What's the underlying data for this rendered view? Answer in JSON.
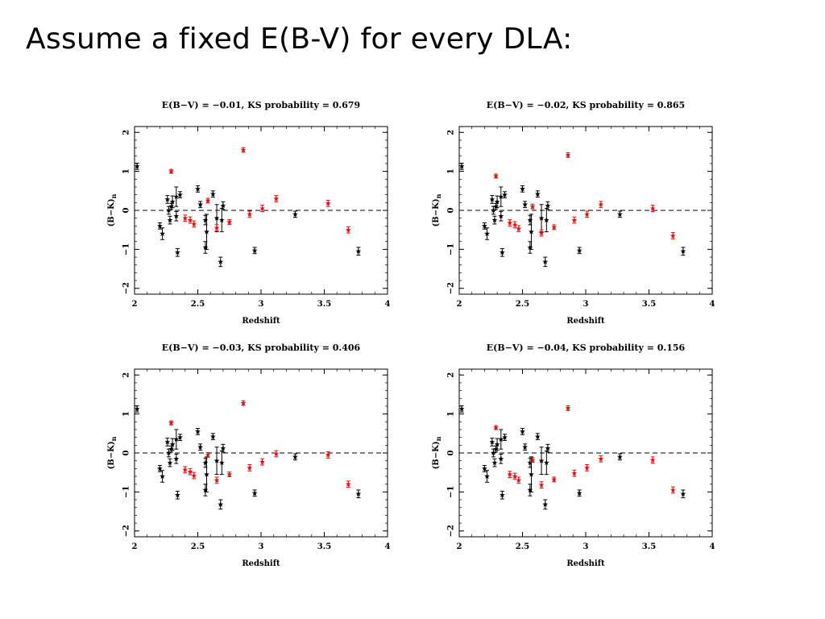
{
  "slide": {
    "title": "Assume a fixed E(B-V) for every DLA:"
  },
  "colors": {
    "black_series": "#000000",
    "red_series": "#dd1111",
    "zero_line": "#000000"
  },
  "chart_data": [
    {
      "type": "scatter",
      "title": "E(B−V) = −0.01,  KS probability = 0.679",
      "xlabel": "Redshift",
      "ylabel": "(B−K)",
      "ylabel_subscript": "n",
      "xlim": [
        2,
        4
      ],
      "ylim": [
        -2.15,
        2.15
      ],
      "xticks": [
        "2",
        "2.5",
        "3",
        "3.5",
        "4"
      ],
      "yticks": [
        "−2",
        "−1",
        "0",
        "1",
        "2"
      ],
      "reference_line": {
        "y": 0,
        "style": "dashed"
      },
      "series": [
        {
          "color": "black",
          "points": [
            {
              "x": 2.02,
              "y": 1.13,
              "err": 0.08
            },
            {
              "x": 2.2,
              "y": -0.4,
              "err": 0.08
            },
            {
              "x": 2.22,
              "y": -0.6,
              "err": 0.15
            },
            {
              "x": 2.26,
              "y": 0.28,
              "err": 0.1
            },
            {
              "x": 2.27,
              "y": 0.0,
              "err": 0.1
            },
            {
              "x": 2.28,
              "y": -0.25,
              "err": 0.1
            },
            {
              "x": 2.29,
              "y": 0.1,
              "err": 0.08
            },
            {
              "x": 2.3,
              "y": 0.22,
              "err": 0.15
            },
            {
              "x": 2.33,
              "y": -0.15,
              "err": 0.12
            },
            {
              "x": 2.33,
              "y": 0.35,
              "err": 0.25
            },
            {
              "x": 2.34,
              "y": -1.08,
              "err": 0.1
            },
            {
              "x": 2.36,
              "y": 0.4,
              "err": 0.08
            },
            {
              "x": 2.5,
              "y": 0.55,
              "err": 0.08
            },
            {
              "x": 2.52,
              "y": 0.15,
              "err": 0.08
            },
            {
              "x": 2.56,
              "y": -0.95,
              "err": 0.15
            },
            {
              "x": 2.56,
              "y": -0.25,
              "err": 0.12
            },
            {
              "x": 2.57,
              "y": -0.55,
              "err": 0.45
            },
            {
              "x": 2.62,
              "y": 0.42,
              "err": 0.08
            },
            {
              "x": 2.65,
              "y": -0.2,
              "err": 0.35
            },
            {
              "x": 2.68,
              "y": -1.32,
              "err": 0.12
            },
            {
              "x": 2.69,
              "y": -0.25,
              "err": 0.3
            },
            {
              "x": 2.7,
              "y": 0.12,
              "err": 0.1
            },
            {
              "x": 2.95,
              "y": -1.03,
              "err": 0.08
            },
            {
              "x": 3.27,
              "y": -0.1,
              "err": 0.08
            },
            {
              "x": 3.77,
              "y": -1.05,
              "err": 0.1
            }
          ]
        },
        {
          "color": "red",
          "points": [
            {
              "x": 2.29,
              "y": 1.0,
              "err": 0.05
            },
            {
              "x": 2.4,
              "y": -0.2,
              "err": 0.08
            },
            {
              "x": 2.44,
              "y": -0.25,
              "err": 0.08
            },
            {
              "x": 2.47,
              "y": -0.35,
              "err": 0.08
            },
            {
              "x": 2.58,
              "y": 0.25,
              "err": 0.06
            },
            {
              "x": 2.65,
              "y": -0.45,
              "err": 0.08
            },
            {
              "x": 2.75,
              "y": -0.3,
              "err": 0.06
            },
            {
              "x": 2.86,
              "y": 1.55,
              "err": 0.06
            },
            {
              "x": 2.91,
              "y": -0.1,
              "err": 0.08
            },
            {
              "x": 3.01,
              "y": 0.05,
              "err": 0.08
            },
            {
              "x": 3.12,
              "y": 0.3,
              "err": 0.08
            },
            {
              "x": 3.53,
              "y": 0.18,
              "err": 0.08
            },
            {
              "x": 3.69,
              "y": -0.5,
              "err": 0.08
            }
          ]
        }
      ]
    },
    {
      "type": "scatter",
      "title": "E(B−V) = −0.02,  KS probability = 0.865",
      "xlabel": "Redshift",
      "ylabel": "(B−K)",
      "ylabel_subscript": "n",
      "xlim": [
        2,
        4
      ],
      "ylim": [
        -2.15,
        2.15
      ],
      "xticks": [
        "2",
        "2.5",
        "3",
        "3.5",
        "4"
      ],
      "yticks": [
        "−2",
        "−1",
        "0",
        "1",
        "2"
      ],
      "reference_line": {
        "y": 0,
        "style": "dashed"
      },
      "series": [
        {
          "color": "black",
          "points": [
            {
              "x": 2.02,
              "y": 1.13,
              "err": 0.08
            },
            {
              "x": 2.2,
              "y": -0.4,
              "err": 0.08
            },
            {
              "x": 2.22,
              "y": -0.6,
              "err": 0.15
            },
            {
              "x": 2.26,
              "y": 0.28,
              "err": 0.1
            },
            {
              "x": 2.27,
              "y": 0.0,
              "err": 0.1
            },
            {
              "x": 2.28,
              "y": -0.25,
              "err": 0.1
            },
            {
              "x": 2.29,
              "y": 0.1,
              "err": 0.08
            },
            {
              "x": 2.3,
              "y": 0.22,
              "err": 0.15
            },
            {
              "x": 2.33,
              "y": -0.15,
              "err": 0.12
            },
            {
              "x": 2.33,
              "y": 0.35,
              "err": 0.25
            },
            {
              "x": 2.34,
              "y": -1.08,
              "err": 0.1
            },
            {
              "x": 2.36,
              "y": 0.4,
              "err": 0.08
            },
            {
              "x": 2.5,
              "y": 0.55,
              "err": 0.08
            },
            {
              "x": 2.52,
              "y": 0.15,
              "err": 0.08
            },
            {
              "x": 2.56,
              "y": -0.95,
              "err": 0.15
            },
            {
              "x": 2.56,
              "y": -0.25,
              "err": 0.12
            },
            {
              "x": 2.57,
              "y": -0.55,
              "err": 0.45
            },
            {
              "x": 2.62,
              "y": 0.42,
              "err": 0.08
            },
            {
              "x": 2.65,
              "y": -0.2,
              "err": 0.35
            },
            {
              "x": 2.68,
              "y": -1.32,
              "err": 0.12
            },
            {
              "x": 2.69,
              "y": -0.25,
              "err": 0.3
            },
            {
              "x": 2.7,
              "y": 0.12,
              "err": 0.1
            },
            {
              "x": 2.95,
              "y": -1.03,
              "err": 0.08
            },
            {
              "x": 3.27,
              "y": -0.1,
              "err": 0.08
            },
            {
              "x": 3.77,
              "y": -1.05,
              "err": 0.1
            }
          ]
        },
        {
          "color": "red",
          "points": [
            {
              "x": 2.29,
              "y": 0.88,
              "err": 0.05
            },
            {
              "x": 2.4,
              "y": -0.32,
              "err": 0.08
            },
            {
              "x": 2.44,
              "y": -0.37,
              "err": 0.08
            },
            {
              "x": 2.47,
              "y": -0.47,
              "err": 0.08
            },
            {
              "x": 2.58,
              "y": 0.1,
              "err": 0.06
            },
            {
              "x": 2.65,
              "y": -0.58,
              "err": 0.08
            },
            {
              "x": 2.75,
              "y": -0.43,
              "err": 0.06
            },
            {
              "x": 2.86,
              "y": 1.42,
              "err": 0.06
            },
            {
              "x": 2.91,
              "y": -0.25,
              "err": 0.08
            },
            {
              "x": 3.01,
              "y": -0.1,
              "err": 0.08
            },
            {
              "x": 3.12,
              "y": 0.15,
              "err": 0.08
            },
            {
              "x": 3.53,
              "y": 0.05,
              "err": 0.08
            },
            {
              "x": 3.69,
              "y": -0.65,
              "err": 0.08
            }
          ]
        }
      ]
    },
    {
      "type": "scatter",
      "title": "E(B−V) = −0.03,  KS probability = 0.406",
      "xlabel": "Redshift",
      "ylabel": "(B−K)",
      "ylabel_subscript": "n",
      "xlim": [
        2,
        4
      ],
      "ylim": [
        -2.15,
        2.15
      ],
      "xticks": [
        "2",
        "2.5",
        "3",
        "3.5",
        "4"
      ],
      "yticks": [
        "−2",
        "−1",
        "0",
        "1",
        "2"
      ],
      "reference_line": {
        "y": 0,
        "style": "dashed"
      },
      "series": [
        {
          "color": "black",
          "points": [
            {
              "x": 2.02,
              "y": 1.13,
              "err": 0.08
            },
            {
              "x": 2.2,
              "y": -0.4,
              "err": 0.08
            },
            {
              "x": 2.22,
              "y": -0.6,
              "err": 0.15
            },
            {
              "x": 2.26,
              "y": 0.28,
              "err": 0.1
            },
            {
              "x": 2.27,
              "y": 0.0,
              "err": 0.1
            },
            {
              "x": 2.28,
              "y": -0.25,
              "err": 0.1
            },
            {
              "x": 2.29,
              "y": 0.1,
              "err": 0.08
            },
            {
              "x": 2.3,
              "y": 0.22,
              "err": 0.15
            },
            {
              "x": 2.33,
              "y": -0.15,
              "err": 0.12
            },
            {
              "x": 2.33,
              "y": 0.35,
              "err": 0.25
            },
            {
              "x": 2.34,
              "y": -1.08,
              "err": 0.1
            },
            {
              "x": 2.36,
              "y": 0.4,
              "err": 0.08
            },
            {
              "x": 2.5,
              "y": 0.55,
              "err": 0.08
            },
            {
              "x": 2.52,
              "y": 0.15,
              "err": 0.08
            },
            {
              "x": 2.56,
              "y": -0.95,
              "err": 0.15
            },
            {
              "x": 2.56,
              "y": -0.25,
              "err": 0.12
            },
            {
              "x": 2.57,
              "y": -0.55,
              "err": 0.45
            },
            {
              "x": 2.62,
              "y": 0.42,
              "err": 0.08
            },
            {
              "x": 2.65,
              "y": -0.2,
              "err": 0.35
            },
            {
              "x": 2.68,
              "y": -1.32,
              "err": 0.12
            },
            {
              "x": 2.69,
              "y": -0.25,
              "err": 0.3
            },
            {
              "x": 2.7,
              "y": 0.12,
              "err": 0.1
            },
            {
              "x": 2.95,
              "y": -1.03,
              "err": 0.08
            },
            {
              "x": 3.27,
              "y": -0.1,
              "err": 0.08
            },
            {
              "x": 3.77,
              "y": -1.05,
              "err": 0.1
            }
          ]
        },
        {
          "color": "red",
          "points": [
            {
              "x": 2.29,
              "y": 0.77,
              "err": 0.05
            },
            {
              "x": 2.4,
              "y": -0.43,
              "err": 0.08
            },
            {
              "x": 2.44,
              "y": -0.48,
              "err": 0.08
            },
            {
              "x": 2.47,
              "y": -0.58,
              "err": 0.08
            },
            {
              "x": 2.58,
              "y": -0.05,
              "err": 0.06
            },
            {
              "x": 2.65,
              "y": -0.7,
              "err": 0.08
            },
            {
              "x": 2.75,
              "y": -0.55,
              "err": 0.06
            },
            {
              "x": 2.86,
              "y": 1.28,
              "err": 0.06
            },
            {
              "x": 2.91,
              "y": -0.38,
              "err": 0.08
            },
            {
              "x": 3.01,
              "y": -0.23,
              "err": 0.08
            },
            {
              "x": 3.12,
              "y": -0.02,
              "err": 0.08
            },
            {
              "x": 3.53,
              "y": -0.05,
              "err": 0.08
            },
            {
              "x": 3.69,
              "y": -0.8,
              "err": 0.08
            }
          ]
        }
      ]
    },
    {
      "type": "scatter",
      "title": "E(B−V) = −0.04,  KS probability = 0.156",
      "xlabel": "Redshift",
      "ylabel": "(B−K)",
      "ylabel_subscript": "n",
      "xlim": [
        2,
        4
      ],
      "ylim": [
        -2.15,
        2.15
      ],
      "xticks": [
        "2",
        "2.5",
        "3",
        "3.5",
        "4"
      ],
      "yticks": [
        "−2",
        "−1",
        "0",
        "1",
        "2"
      ],
      "reference_line": {
        "y": 0,
        "style": "dashed"
      },
      "series": [
        {
          "color": "black",
          "points": [
            {
              "x": 2.02,
              "y": 1.13,
              "err": 0.08
            },
            {
              "x": 2.2,
              "y": -0.4,
              "err": 0.08
            },
            {
              "x": 2.22,
              "y": -0.6,
              "err": 0.15
            },
            {
              "x": 2.26,
              "y": 0.28,
              "err": 0.1
            },
            {
              "x": 2.27,
              "y": 0.0,
              "err": 0.1
            },
            {
              "x": 2.28,
              "y": -0.25,
              "err": 0.1
            },
            {
              "x": 2.29,
              "y": 0.1,
              "err": 0.08
            },
            {
              "x": 2.3,
              "y": 0.22,
              "err": 0.15
            },
            {
              "x": 2.33,
              "y": -0.15,
              "err": 0.12
            },
            {
              "x": 2.33,
              "y": 0.35,
              "err": 0.25
            },
            {
              "x": 2.34,
              "y": -1.08,
              "err": 0.1
            },
            {
              "x": 2.36,
              "y": 0.4,
              "err": 0.08
            },
            {
              "x": 2.5,
              "y": 0.55,
              "err": 0.08
            },
            {
              "x": 2.52,
              "y": 0.15,
              "err": 0.08
            },
            {
              "x": 2.56,
              "y": -0.95,
              "err": 0.15
            },
            {
              "x": 2.56,
              "y": -0.25,
              "err": 0.12
            },
            {
              "x": 2.57,
              "y": -0.55,
              "err": 0.45
            },
            {
              "x": 2.62,
              "y": 0.42,
              "err": 0.08
            },
            {
              "x": 2.65,
              "y": -0.2,
              "err": 0.35
            },
            {
              "x": 2.68,
              "y": -1.32,
              "err": 0.12
            },
            {
              "x": 2.69,
              "y": -0.25,
              "err": 0.3
            },
            {
              "x": 2.7,
              "y": 0.12,
              "err": 0.1
            },
            {
              "x": 2.95,
              "y": -1.03,
              "err": 0.08
            },
            {
              "x": 3.27,
              "y": -0.1,
              "err": 0.08
            },
            {
              "x": 3.77,
              "y": -1.05,
              "err": 0.1
            }
          ]
        },
        {
          "color": "red",
          "points": [
            {
              "x": 2.29,
              "y": 0.65,
              "err": 0.05
            },
            {
              "x": 2.4,
              "y": -0.55,
              "err": 0.08
            },
            {
              "x": 2.44,
              "y": -0.6,
              "err": 0.08
            },
            {
              "x": 2.47,
              "y": -0.7,
              "err": 0.08
            },
            {
              "x": 2.58,
              "y": -0.18,
              "err": 0.06
            },
            {
              "x": 2.65,
              "y": -0.82,
              "err": 0.08
            },
            {
              "x": 2.75,
              "y": -0.68,
              "err": 0.06
            },
            {
              "x": 2.86,
              "y": 1.15,
              "err": 0.06
            },
            {
              "x": 2.91,
              "y": -0.52,
              "err": 0.08
            },
            {
              "x": 3.01,
              "y": -0.38,
              "err": 0.08
            },
            {
              "x": 3.12,
              "y": -0.15,
              "err": 0.08
            },
            {
              "x": 3.53,
              "y": -0.18,
              "err": 0.08
            },
            {
              "x": 3.69,
              "y": -0.95,
              "err": 0.08
            }
          ]
        }
      ]
    }
  ]
}
